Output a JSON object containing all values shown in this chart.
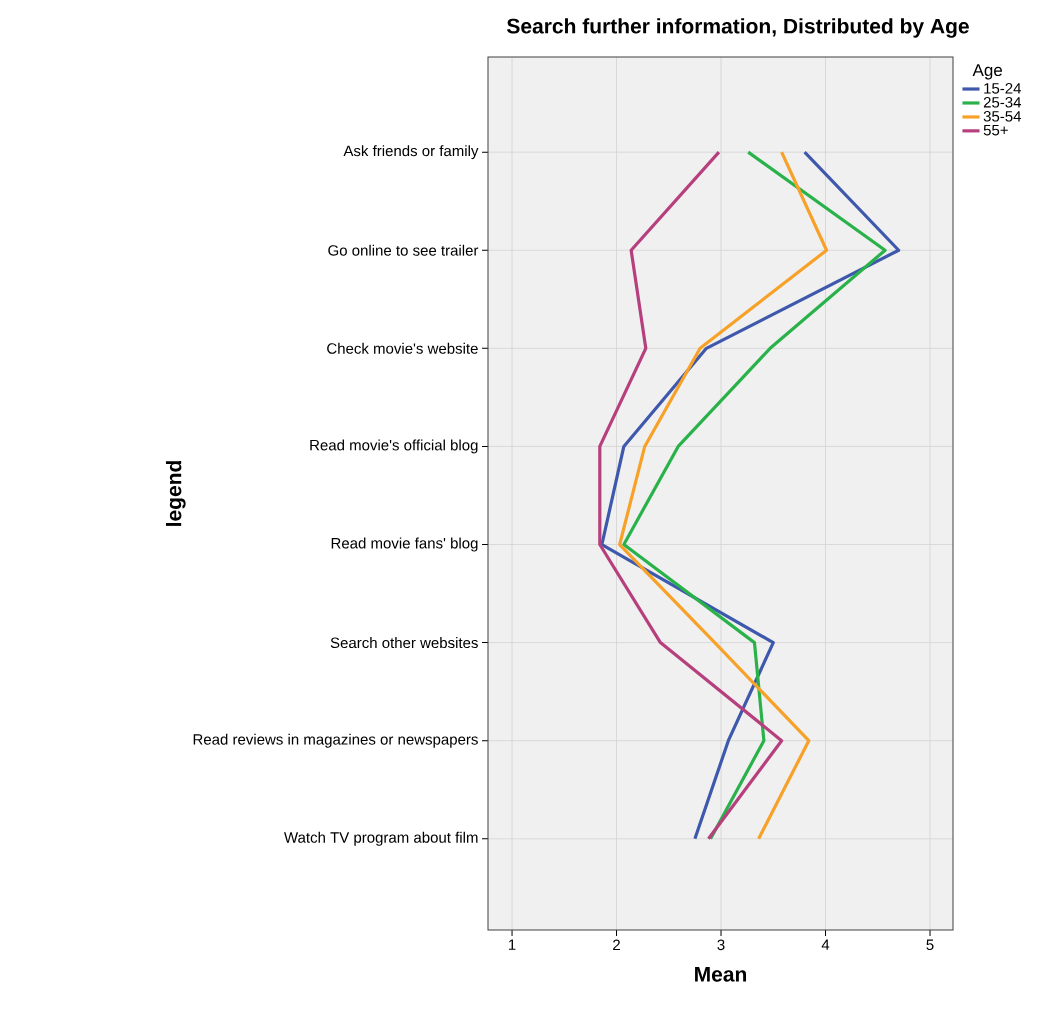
{
  "chart_data": {
    "type": "line",
    "title": "Search further information, Distributed by Age",
    "xlabel": "Mean",
    "ylabel": "legend",
    "legend_title": "Age",
    "orientation": "horizontal",
    "categories": [
      "Ask friends or family",
      "Go online to see trailer",
      "Check movie's website",
      "Read movie's official blog",
      "Read movie fans' blog",
      "Search other websites",
      "Read reviews in magazines or newspapers",
      "Watch TV program about film"
    ],
    "series": [
      {
        "name": "15-24",
        "color": "#3e58ac",
        "values": [
          3.8,
          4.7,
          2.86,
          2.07,
          1.86,
          3.5,
          3.07,
          2.75
        ]
      },
      {
        "name": "25-34",
        "color": "#2ab24a",
        "values": [
          3.26,
          4.57,
          3.47,
          2.59,
          2.07,
          3.32,
          3.41,
          2.9
        ]
      },
      {
        "name": "35-54",
        "color": "#f7a128",
        "values": [
          3.58,
          4.01,
          2.8,
          2.27,
          2.03,
          2.94,
          3.84,
          3.36
        ]
      },
      {
        "name": "55+",
        "color": "#b63f7d",
        "values": [
          2.98,
          2.14,
          2.28,
          1.84,
          1.84,
          2.42,
          3.58,
          2.88
        ]
      }
    ],
    "xlim": [
      0.77,
      5.22
    ],
    "xticks": [
      1,
      2,
      3,
      4,
      5
    ],
    "grid": true,
    "legend": "top right",
    "marker": "none",
    "line_style": "solid"
  }
}
